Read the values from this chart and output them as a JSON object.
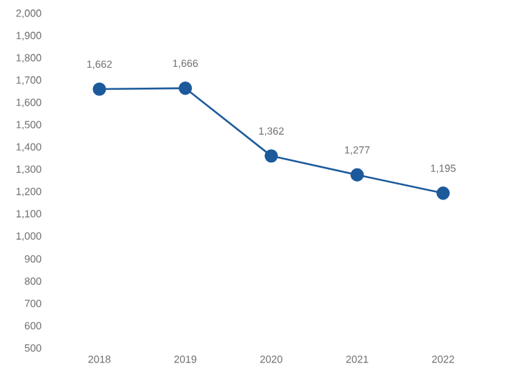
{
  "chart_data": {
    "type": "line",
    "categories": [
      "2018",
      "2019",
      "2020",
      "2021",
      "2022"
    ],
    "series": [
      {
        "color": "#1d5a9c",
        "values": [
          1662,
          1666,
          1362,
          1277,
          1195
        ]
      }
    ],
    "ylim": [
      500,
      2000
    ],
    "yticks": [
      500,
      600,
      700,
      800,
      900,
      {
        "value": 1000,
        "label": "1,000"
      },
      {
        "value": 1100,
        "label": "1,100"
      },
      {
        "value": 1200,
        "label": "1,200"
      },
      {
        "value": 1300,
        "label": "1,300"
      },
      {
        "value": 1400,
        "label": "1,400"
      },
      {
        "value": 1500,
        "label": "1,500"
      },
      {
        "value": 1600,
        "label": "1,600"
      },
      {
        "value": 1700,
        "label": "1,700"
      },
      {
        "value": 1800,
        "label": "1,800"
      },
      {
        "value": 1900,
        "label": "1,900"
      },
      {
        "value": 2000,
        "label": "2,000"
      }
    ],
    "value_labels": [
      "1,662",
      "1,666",
      "1,362",
      "1,277",
      "1,195"
    ],
    "marker": "circle",
    "line_style": "solid"
  }
}
